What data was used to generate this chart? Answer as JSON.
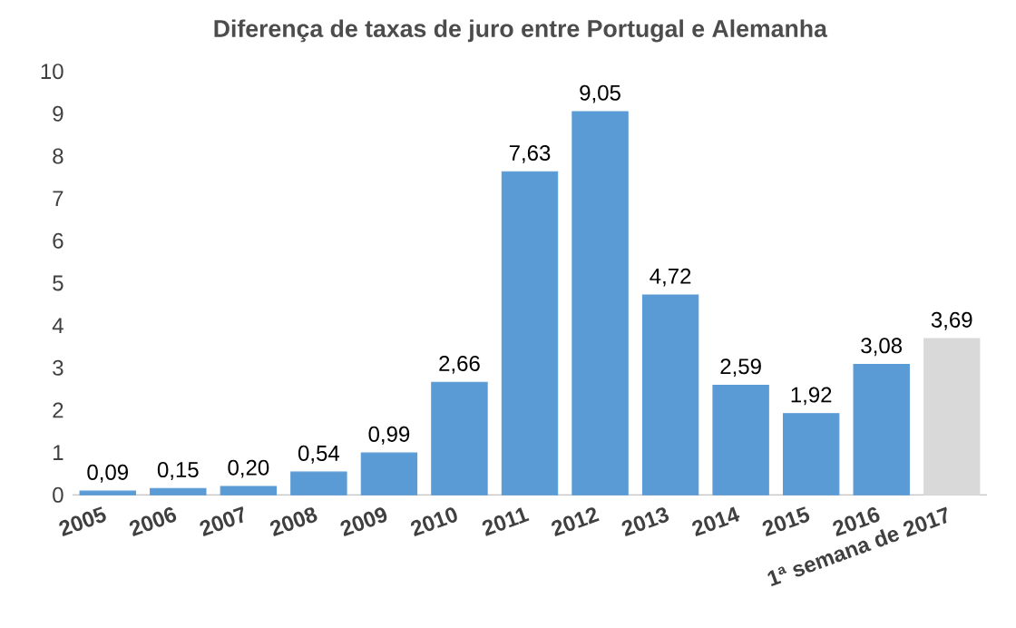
{
  "chart_data": {
    "type": "bar",
    "title": "Diferença de taxas de juro entre Portugal e Alemanha",
    "categories": [
      "2005",
      "2006",
      "2007",
      "2008",
      "2009",
      "2010",
      "2011",
      "2012",
      "2013",
      "2014",
      "2015",
      "2016",
      "1ª semana de 2017"
    ],
    "values": [
      0.09,
      0.15,
      0.2,
      0.54,
      0.99,
      2.66,
      7.63,
      9.05,
      4.72,
      2.59,
      1.92,
      3.08,
      3.69
    ],
    "value_labels": [
      "0,09",
      "0,15",
      "0,20",
      "0,54",
      "0,99",
      "2,66",
      "7,63",
      "9,05",
      "4,72",
      "2,59",
      "1,92",
      "3,08",
      "3,69"
    ],
    "colors": [
      "#5b9bd5",
      "#5b9bd5",
      "#5b9bd5",
      "#5b9bd5",
      "#5b9bd5",
      "#5b9bd5",
      "#5b9bd5",
      "#5b9bd5",
      "#5b9bd5",
      "#5b9bd5",
      "#5b9bd5",
      "#5b9bd5",
      "#d9d9d9"
    ],
    "ylim": [
      0,
      10
    ],
    "yticks": [
      0,
      1,
      2,
      3,
      4,
      5,
      6,
      7,
      8,
      9,
      10
    ],
    "grid": false
  }
}
